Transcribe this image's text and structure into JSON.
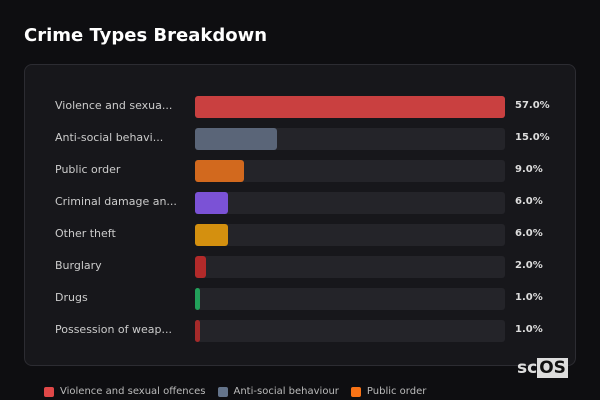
{
  "chart_data": {
    "type": "bar",
    "orientation": "horizontal",
    "title": "Crime Types Breakdown",
    "categories": [
      "Violence and sexua...",
      "Anti-social behavi...",
      "Public order",
      "Criminal damage an...",
      "Other theft",
      "Burglary",
      "Drugs",
      "Possession of weap..."
    ],
    "values": [
      57.0,
      15.0,
      9.0,
      6.0,
      6.0,
      2.0,
      1.0,
      1.0
    ],
    "value_labels": [
      "57.0%",
      "15.0%",
      "9.0%",
      "6.0%",
      "6.0%",
      "2.0%",
      "1.0%",
      "1.0%"
    ],
    "colors": [
      "#c94040",
      "#5a6578",
      "#d2691e",
      "#7b52d6",
      "#d4900f",
      "#b22a2a",
      "#22a05a",
      "#a52a2a"
    ],
    "xlim": [
      0,
      57
    ],
    "legend": [
      {
        "label": "Violence and sexual offences",
        "color": "#e04848"
      },
      {
        "label": "Anti-social behaviour",
        "color": "#64748b"
      },
      {
        "label": "Public order",
        "color": "#f97316"
      }
    ],
    "legend_position": "bottom"
  },
  "logo": {
    "a": "sc",
    "b": "OS"
  }
}
